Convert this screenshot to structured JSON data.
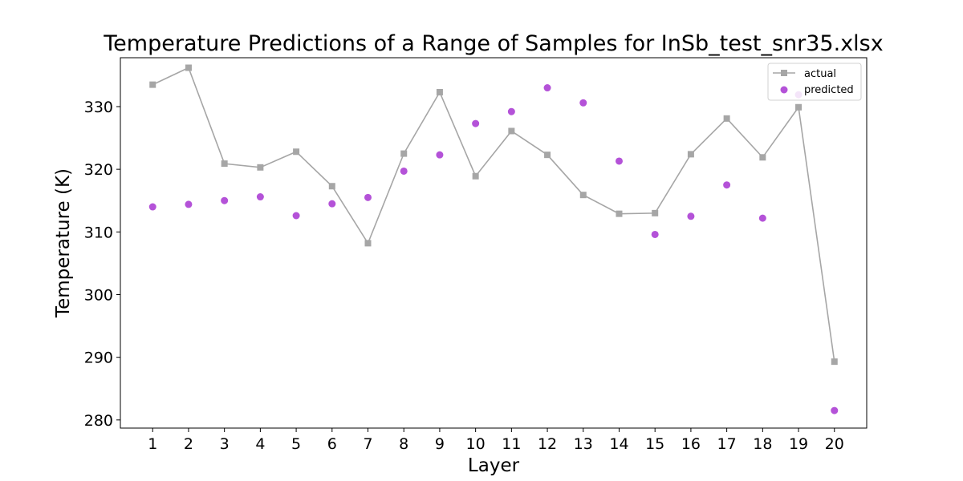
{
  "chart_data": {
    "type": "line",
    "title": "Temperature Predictions of a Range of Samples for InSb_test_snr35.xlsx",
    "xlabel": "Layer",
    "ylabel": "Temperature (K)",
    "x": [
      1,
      2,
      3,
      4,
      5,
      6,
      7,
      8,
      9,
      10,
      11,
      12,
      13,
      14,
      15,
      16,
      17,
      18,
      19,
      20
    ],
    "xticks": [
      "1",
      "2",
      "3",
      "4",
      "5",
      "6",
      "7",
      "8",
      "9",
      "10",
      "11",
      "12",
      "13",
      "14",
      "15",
      "16",
      "17",
      "18",
      "19",
      "20"
    ],
    "xlim": [
      0.1,
      20.9
    ],
    "ylim": [
      278.7,
      337.8
    ],
    "yticks": [
      280,
      290,
      300,
      310,
      320,
      330
    ],
    "grid": false,
    "legend_position": "top-right",
    "series": [
      {
        "name": "actual",
        "style": "line-square-markers",
        "color": "#a6a6a6",
        "values": [
          333.5,
          336.2,
          320.9,
          320.3,
          322.8,
          317.3,
          308.2,
          322.5,
          332.3,
          318.9,
          326.1,
          322.3,
          315.9,
          312.9,
          313.0,
          322.4,
          328.1,
          321.9,
          329.9,
          289.3
        ]
      },
      {
        "name": "predicted",
        "style": "scatter",
        "color": "#b452d8",
        "values": [
          314.0,
          314.4,
          315.0,
          315.6,
          312.6,
          314.5,
          315.5,
          319.7,
          322.3,
          327.3,
          329.2,
          333.0,
          330.6,
          321.3,
          309.6,
          312.5,
          317.5,
          312.2,
          331.9,
          281.5
        ]
      }
    ]
  }
}
